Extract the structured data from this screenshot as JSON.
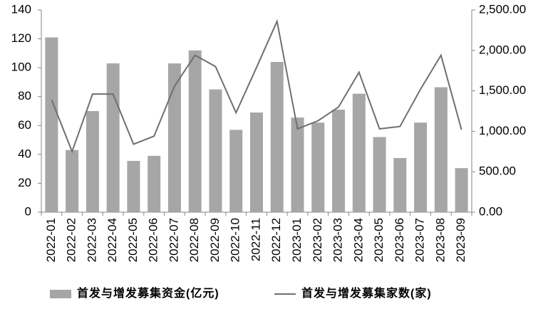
{
  "chart_data": {
    "type": "bar",
    "categories": [
      "2022-01",
      "2022-02",
      "2022-03",
      "2022-04",
      "2022-05",
      "2022-06",
      "2022-07",
      "2022-08",
      "2022-09",
      "2022-10",
      "2022-11",
      "2022-12",
      "2023-01",
      "2023-02",
      "2023-03",
      "2023-04",
      "2023-05",
      "2023-06",
      "2023-07",
      "2023-08",
      "2023-09"
    ],
    "series": [
      {
        "name": "首发与增发募集资金(亿元)",
        "type": "bar",
        "color": "#a6a6a6",
        "values": [
          121,
          43,
          70,
          103,
          35.5,
          39,
          103,
          112,
          85,
          57,
          69,
          104,
          65.5,
          62,
          71,
          82,
          52,
          37.5,
          62,
          86.5,
          30.5
        ]
      },
      {
        "name": "首发与增发募集家数(家)",
        "type": "line",
        "axis": "y2",
        "color": "#6f6f6f",
        "values": [
          1390,
          750,
          1460,
          1460,
          840,
          940,
          1560,
          1940,
          1800,
          1230,
          1790,
          2360,
          1030,
          1130,
          1300,
          1730,
          1030,
          1060,
          1520,
          1940,
          1020
        ]
      }
    ],
    "ylim": [
      0,
      140
    ],
    "yticks": [
      0,
      20,
      40,
      60,
      80,
      100,
      120,
      140
    ],
    "y2lim": [
      0,
      2500
    ],
    "y2ticks": [
      {
        "value": 0,
        "label": "0.00"
      },
      {
        "value": 500,
        "label": "500.00"
      },
      {
        "value": 1000,
        "label": "1,000.00"
      },
      {
        "value": 1500,
        "label": "1,500.00"
      },
      {
        "value": 2000,
        "label": "2,000.00"
      },
      {
        "value": 2500,
        "label": "2,500.00"
      }
    ],
    "legend": "bottom"
  }
}
